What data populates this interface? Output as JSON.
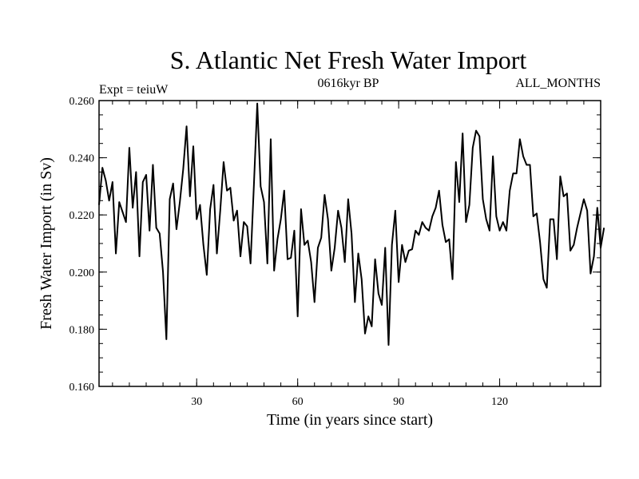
{
  "chart_data": {
    "type": "line",
    "title": "S. Atlantic Net Fresh Water Import",
    "subtitle": "0616kyr BP",
    "left_label": "Expt = teiuW",
    "right_label": "ALL_MONTHS",
    "xlabel": "Time (in years since start)",
    "ylabel": "Fresh Water Import (in Sv)",
    "xlim": [
      1,
      150
    ],
    "ylim": [
      0.16,
      0.26
    ],
    "xticks": [
      30,
      60,
      90,
      120
    ],
    "xtick_labels": [
      "30",
      "60",
      "90",
      "120"
    ],
    "yticks": [
      0.16,
      0.18,
      0.2,
      0.22,
      0.24,
      0.26
    ],
    "ytick_labels": [
      "0.160",
      "0.180",
      "0.200",
      "0.220",
      "0.240",
      "0.260"
    ],
    "x_minor_step": 5,
    "y_minor_step": 0.005,
    "grid": false,
    "series": [
      {
        "name": "Net Fresh Water Import",
        "color": "#000000",
        "values": [
          0.2235,
          0.2365,
          0.232,
          0.225,
          0.2315,
          0.2065,
          0.2245,
          0.221,
          0.2175,
          0.2435,
          0.2225,
          0.235,
          0.2055,
          0.2315,
          0.234,
          0.2145,
          0.2375,
          0.2155,
          0.2135,
          0.2,
          0.1765,
          0.2255,
          0.231,
          0.215,
          0.2245,
          0.236,
          0.251,
          0.2265,
          0.244,
          0.2185,
          0.2235,
          0.2095,
          0.199,
          0.222,
          0.2305,
          0.2065,
          0.2215,
          0.2385,
          0.2285,
          0.2295,
          0.218,
          0.2215,
          0.2055,
          0.2175,
          0.216,
          0.203,
          0.2305,
          0.259,
          0.23,
          0.2245,
          0.203,
          0.2465,
          0.2005,
          0.2115,
          0.2185,
          0.2285,
          0.2045,
          0.205,
          0.2145,
          0.1845,
          0.222,
          0.2095,
          0.211,
          0.2035,
          0.1895,
          0.2085,
          0.212,
          0.227,
          0.2185,
          0.2005,
          0.2085,
          0.2215,
          0.2155,
          0.2035,
          0.2255,
          0.2135,
          0.1895,
          0.2065,
          0.1975,
          0.1785,
          0.1845,
          0.181,
          0.2045,
          0.1925,
          0.1885,
          0.2085,
          0.1745,
          0.2095,
          0.2215,
          0.1965,
          0.2095,
          0.2035,
          0.2075,
          0.208,
          0.2145,
          0.213,
          0.2175,
          0.2155,
          0.2145,
          0.2195,
          0.2225,
          0.2285,
          0.2165,
          0.2105,
          0.2115,
          0.1975,
          0.2385,
          0.2245,
          0.2485,
          0.2175,
          0.2235,
          0.2435,
          0.2495,
          0.2475,
          0.2255,
          0.2185,
          0.2145,
          0.2405,
          0.2195,
          0.2145,
          0.2175,
          0.2145,
          0.2285,
          0.2345,
          0.2345,
          0.2465,
          0.2405,
          0.2375,
          0.2375,
          0.2195,
          0.2205,
          0.2105,
          0.1975,
          0.1945,
          0.2185,
          0.2185,
          0.2045,
          0.2335,
          0.2265,
          0.2275,
          0.2075,
          0.2095,
          0.2155,
          0.2205,
          0.2255,
          0.2215,
          0.1995,
          0.2055,
          0.2225,
          0.2085,
          0.2155
        ]
      }
    ]
  }
}
